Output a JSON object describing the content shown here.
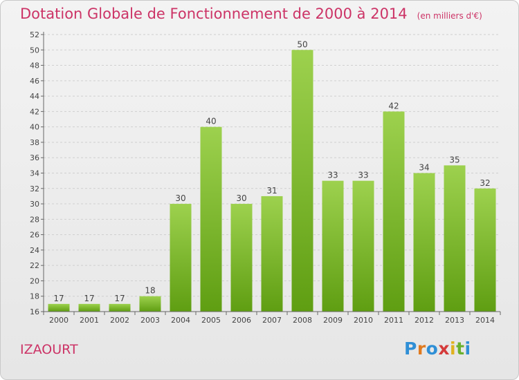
{
  "chart_data": {
    "type": "bar",
    "title": "Dotation Globale de Fonctionnement de 2000 à 2014",
    "unit_note": "(en milliers d'€)",
    "categories": [
      "2000",
      "2001",
      "2002",
      "2003",
      "2004",
      "2005",
      "2006",
      "2007",
      "2008",
      "2009",
      "2010",
      "2011",
      "2012",
      "2013",
      "2014"
    ],
    "values": [
      17,
      17,
      17,
      18,
      30,
      40,
      30,
      31,
      50,
      33,
      33,
      42,
      34,
      35,
      32
    ],
    "ylim": [
      16,
      52
    ],
    "yticks": [
      16,
      18,
      20,
      22,
      24,
      26,
      28,
      30,
      32,
      34,
      36,
      38,
      40,
      42,
      44,
      46,
      48,
      50,
      52
    ],
    "grid": true,
    "bar_color_top": "#9dd14e",
    "bar_color_bottom": "#5f9e12"
  },
  "commune": "IZAOURT",
  "logo": [
    "P",
    "r",
    "o",
    "x",
    "i",
    "t",
    "i"
  ]
}
